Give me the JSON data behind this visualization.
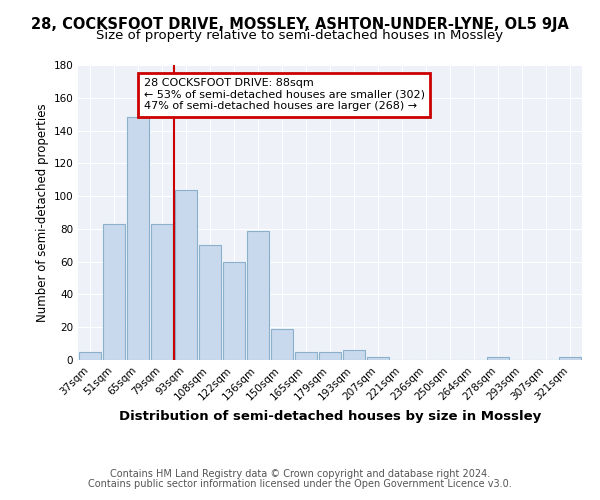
{
  "title": "28, COCKSFOOT DRIVE, MOSSLEY, ASHTON-UNDER-LYNE, OL5 9JA",
  "subtitle": "Size of property relative to semi-detached houses in Mossley",
  "xlabel": "Distribution of semi-detached houses by size in Mossley",
  "ylabel": "Number of semi-detached properties",
  "footnote1": "Contains HM Land Registry data © Crown copyright and database right 2024.",
  "footnote2": "Contains public sector information licensed under the Open Government Licence v3.0.",
  "categories": [
    "37sqm",
    "51sqm",
    "65sqm",
    "79sqm",
    "93sqm",
    "108sqm",
    "122sqm",
    "136sqm",
    "150sqm",
    "165sqm",
    "179sqm",
    "193sqm",
    "207sqm",
    "221sqm",
    "236sqm",
    "250sqm",
    "264sqm",
    "278sqm",
    "293sqm",
    "307sqm",
    "321sqm"
  ],
  "values": [
    5,
    83,
    148,
    83,
    104,
    70,
    60,
    79,
    19,
    5,
    5,
    6,
    2,
    0,
    0,
    0,
    0,
    2,
    0,
    0,
    2
  ],
  "bar_color": "#c9d9ed",
  "bar_edge_color": "#8ab0cc",
  "red_line_index": 4,
  "annotation_title": "28 COCKSFOOT DRIVE: 88sqm",
  "annotation_line1": "← 53% of semi-detached houses are smaller (302)",
  "annotation_line2": "47% of semi-detached houses are larger (268) →",
  "annotation_box_color": "#ffffff",
  "annotation_box_edge": "#cc0000",
  "red_line_color": "#cc0000",
  "ylim": [
    0,
    180
  ],
  "yticks": [
    0,
    20,
    40,
    60,
    80,
    100,
    120,
    140,
    160,
    180
  ],
  "title_fontsize": 10.5,
  "subtitle_fontsize": 9.5,
  "xlabel_fontsize": 9.5,
  "ylabel_fontsize": 8.5,
  "tick_fontsize": 7.5,
  "annotation_fontsize": 8,
  "footnote_fontsize": 7,
  "background_color": "#eef2f8"
}
